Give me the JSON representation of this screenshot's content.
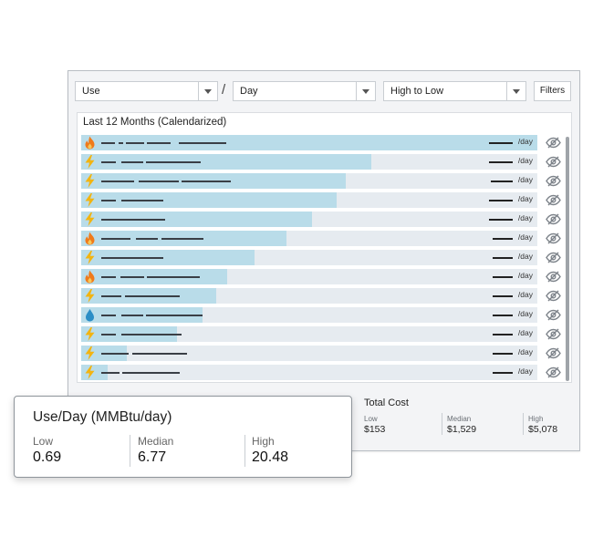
{
  "controls": {
    "metric_select": "Use",
    "period_select": "Day",
    "slash": "/",
    "sort_select": "High to Low",
    "filters_label": "Filters"
  },
  "list": {
    "title": "Last 12 Months (Calendarized)",
    "unit_label": "/day",
    "rows": [
      {
        "icon": "flame-icon",
        "fill": 1.0
      },
      {
        "icon": "bolt-icon",
        "fill": 0.635
      },
      {
        "icon": "bolt-icon",
        "fill": 0.58
      },
      {
        "icon": "bolt-icon",
        "fill": 0.56
      },
      {
        "icon": "bolt-icon",
        "fill": 0.505
      },
      {
        "icon": "flame-icon",
        "fill": 0.45
      },
      {
        "icon": "bolt-icon",
        "fill": 0.38
      },
      {
        "icon": "flame-icon",
        "fill": 0.32
      },
      {
        "icon": "bolt-icon",
        "fill": 0.295
      },
      {
        "icon": "drop-icon",
        "fill": 0.265
      },
      {
        "icon": "bolt-icon",
        "fill": 0.21
      },
      {
        "icon": "bolt-icon",
        "fill": 0.1
      },
      {
        "icon": "bolt-icon",
        "fill": 0.058
      }
    ]
  },
  "total_cost": {
    "title": "Total Cost",
    "low_label": "Low",
    "low_value": "$153",
    "median_label": "Median",
    "median_value": "$1,529",
    "high_label": "High",
    "high_value": "$5,078"
  },
  "use_card": {
    "title": "Use/Day (MMBtu/day)",
    "low_label": "Low",
    "low_value": "0.69",
    "median_label": "Median",
    "median_value": "6.77",
    "high_label": "High",
    "high_value": "20.48"
  },
  "colors": {
    "bar_fill": "#b9dce9",
    "bar_track": "#e6ebf0",
    "bolt": "#f2b411",
    "flame": "#f07a1a",
    "drop": "#2b8ec6"
  }
}
